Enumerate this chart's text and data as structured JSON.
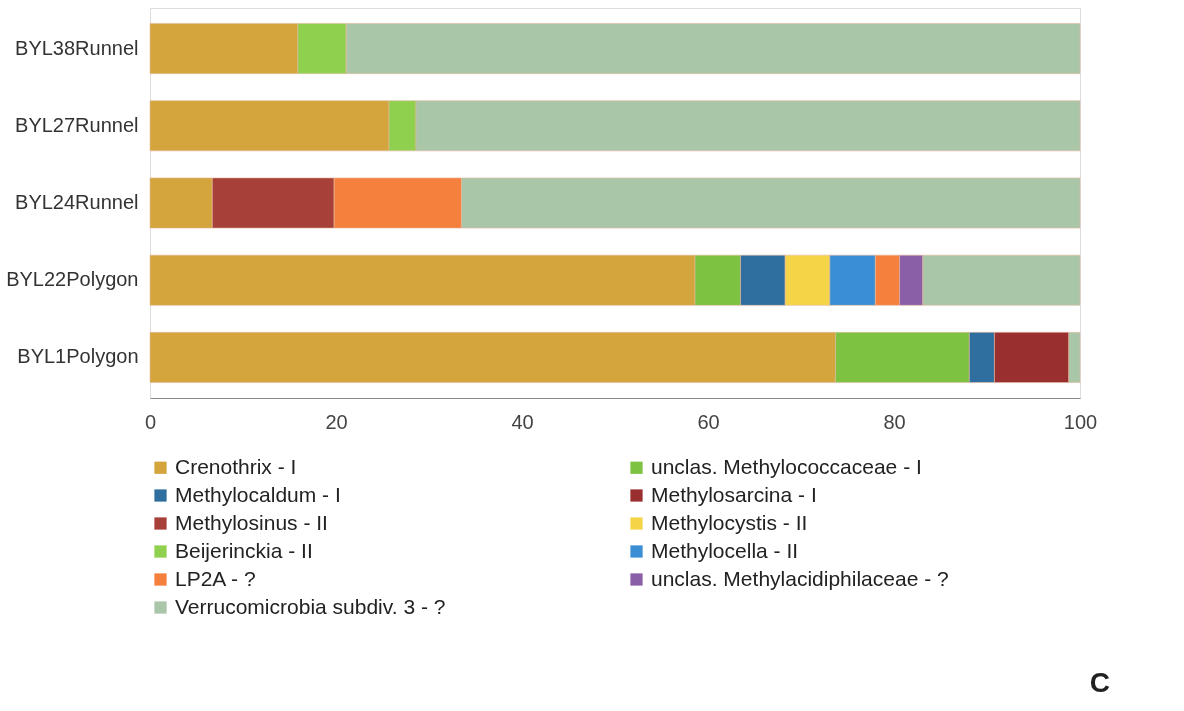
{
  "chart_data": {
    "type": "bar",
    "orientation": "horizontal",
    "stacked": true,
    "categories": [
      "BYL38Runnel",
      "BYL27Runnel",
      "BYL24Runnel",
      "BYL22Polygon",
      "BYL1Polygon"
    ],
    "series": [
      {
        "name": "Crenothrix - I",
        "color": "#d4a53c",
        "values": [
          15.9,
          25.7,
          6.7,
          58.6,
          73.7
        ]
      },
      {
        "name": "unclas. Methylococcaceae - I",
        "color": "#7dc241",
        "values": [
          null,
          null,
          null,
          4.9,
          14.4
        ]
      },
      {
        "name": "Methylocaldum - I",
        "color": "#2f6fa0",
        "values": [
          null,
          null,
          null,
          4.8,
          2.7
        ]
      },
      {
        "name": "Methylosarcina - I",
        "color": "#9a2f2f",
        "values": [
          null,
          null,
          null,
          null,
          8.0
        ]
      },
      {
        "name": "Methylosinus - II",
        "color": "#a8403a",
        "values": [
          null,
          null,
          13.1,
          null,
          null
        ]
      },
      {
        "name": "Methylocystis - II",
        "color": "#f5d547",
        "values": [
          null,
          null,
          null,
          4.8,
          null
        ]
      },
      {
        "name": "Beijerinckia - II",
        "color": "#8fd14f",
        "values": [
          5.2,
          2.9,
          null,
          null,
          null
        ]
      },
      {
        "name": "Methylocella - II",
        "color": "#3a8fd4",
        "values": [
          null,
          null,
          null,
          4.9,
          null
        ]
      },
      {
        "name": "LP2A - ?",
        "color": "#f57f3c",
        "values": [
          null,
          null,
          13.7,
          2.6,
          null
        ]
      },
      {
        "name": "unclas. Methylacidiphilaceae - ?",
        "color": "#8b5ea8",
        "values": [
          null,
          null,
          null,
          2.5,
          null
        ]
      },
      {
        "name": "Verrucomicrobia subdiv. 3 - ?",
        "color": "#a9c6a9",
        "values": [
          78.9,
          71.4,
          66.5,
          16.9,
          1.2
        ]
      }
    ],
    "xlim": [
      0,
      100
    ],
    "xticks": [
      0,
      20,
      40,
      60,
      80,
      100
    ],
    "grid": false,
    "legend": "bottom",
    "annotations": [
      "C"
    ]
  }
}
